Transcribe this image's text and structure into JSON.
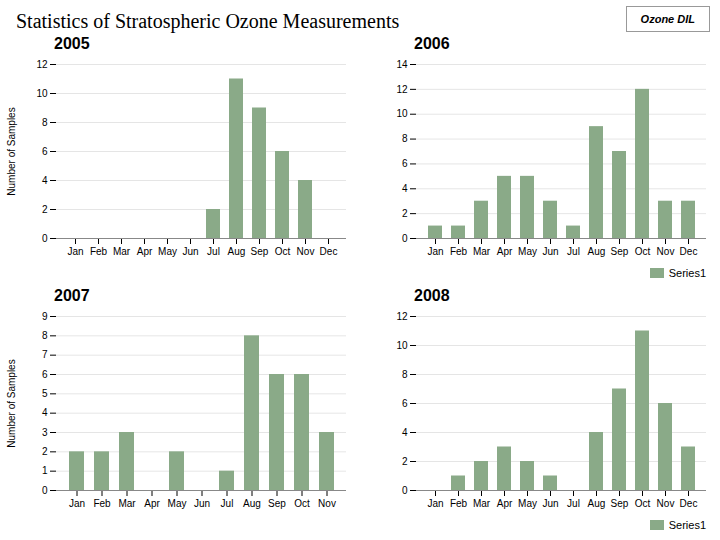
{
  "title": "Statistics of Stratospheric Ozone Measurements",
  "annotations": [
    "Ozone DIL"
  ],
  "chart_data": [
    {
      "type": "bar",
      "title": "2005",
      "ylabel": "Number of Samples",
      "categories": [
        "Jan",
        "Feb",
        "Mar",
        "Apr",
        "May",
        "Jun",
        "Jul",
        "Aug",
        "Sep",
        "Oct",
        "Nov",
        "Dec"
      ],
      "values": [
        0,
        0,
        0,
        0,
        0,
        0,
        2,
        11,
        9,
        6,
        4,
        0
      ],
      "color": "#8aaa88",
      "ylim": [
        0,
        12
      ],
      "yticks": [
        0,
        2,
        4,
        6,
        8,
        10,
        12
      ],
      "grid": true
    },
    {
      "type": "bar",
      "title": "2006",
      "categories": [
        "Jan",
        "Feb",
        "Mar",
        "Apr",
        "May",
        "Jun",
        "Jul",
        "Aug",
        "Sep",
        "Oct",
        "Nov",
        "Dec"
      ],
      "series": [
        {
          "name": "Series1",
          "color": "#8aaa88",
          "values": [
            1,
            1,
            3,
            5,
            5,
            3,
            1,
            9,
            7,
            12,
            3,
            3
          ]
        }
      ],
      "ylim": [
        0,
        14
      ],
      "yticks": [
        0,
        2,
        4,
        6,
        8,
        10,
        12,
        14
      ],
      "grid": true,
      "legend": "lower right"
    },
    {
      "type": "bar",
      "title": "2007",
      "ylabel": "Number of Samples",
      "categories": [
        "Jan",
        "Feb",
        "Mar",
        "Apr",
        "May",
        "Jun",
        "Jul",
        "Aug",
        "Sep",
        "Oct",
        "Nov"
      ],
      "values": [
        2,
        2,
        3,
        0,
        2,
        0,
        1,
        8,
        6,
        6,
        3
      ],
      "color": "#8aaa88",
      "ylim": [
        0,
        9
      ],
      "yticks": [
        0,
        1,
        2,
        3,
        4,
        5,
        6,
        7,
        8,
        9
      ],
      "grid": true
    },
    {
      "type": "bar",
      "title": "2008",
      "categories": [
        "Jan",
        "Feb",
        "Mar",
        "Apr",
        "May",
        "Jun",
        "Jul",
        "Aug",
        "Sep",
        "Oct",
        "Nov",
        "Dec"
      ],
      "series": [
        {
          "name": "Series1",
          "color": "#8aaa88",
          "values": [
            0,
            1,
            2,
            3,
            2,
            1,
            0,
            4,
            7,
            11,
            6,
            3
          ]
        }
      ],
      "ylim": [
        0,
        12
      ],
      "yticks": [
        0,
        2,
        4,
        6,
        8,
        10,
        12
      ],
      "grid": true,
      "legend": "lower right"
    }
  ]
}
